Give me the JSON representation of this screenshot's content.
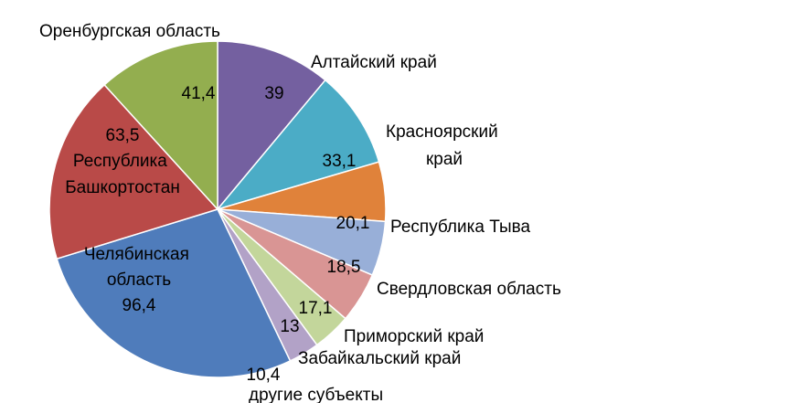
{
  "chart_data": {
    "type": "pie",
    "title": "",
    "slices": [
      {
        "value": 39,
        "value_label": "39",
        "label": "Алтайский край",
        "color": "#7460A0"
      },
      {
        "value": 33.1,
        "value_label": "33,1",
        "label": "Красноярский край",
        "color": "#4BACC6"
      },
      {
        "value": 20.1,
        "value_label": "20,1",
        "label": "Республика Тыва",
        "color": "#E0823A"
      },
      {
        "value": 18.5,
        "value_label": "18,5",
        "label": "Свердловская область",
        "color": "#98AFD8"
      },
      {
        "value": 17.1,
        "value_label": "17,1",
        "label": "Приморский край",
        "color": "#D99594"
      },
      {
        "value": 13,
        "value_label": "13",
        "label": "Забайкальский край",
        "color": "#C3D69B"
      },
      {
        "value": 10.4,
        "value_label": "10,4",
        "label": "другие субъекты",
        "color": "#B2A2C7"
      },
      {
        "value": 96.4,
        "value_label": "96,4",
        "label": "Челябинская область",
        "color": "#4F7CBB"
      },
      {
        "value": 63.5,
        "value_label": "63,5",
        "label": "Республика Башкортостан",
        "color": "#B94A48"
      },
      {
        "value": 41.4,
        "value_label": "41,4",
        "label": "Оренбургская область",
        "color": "#93AE4F"
      }
    ]
  }
}
